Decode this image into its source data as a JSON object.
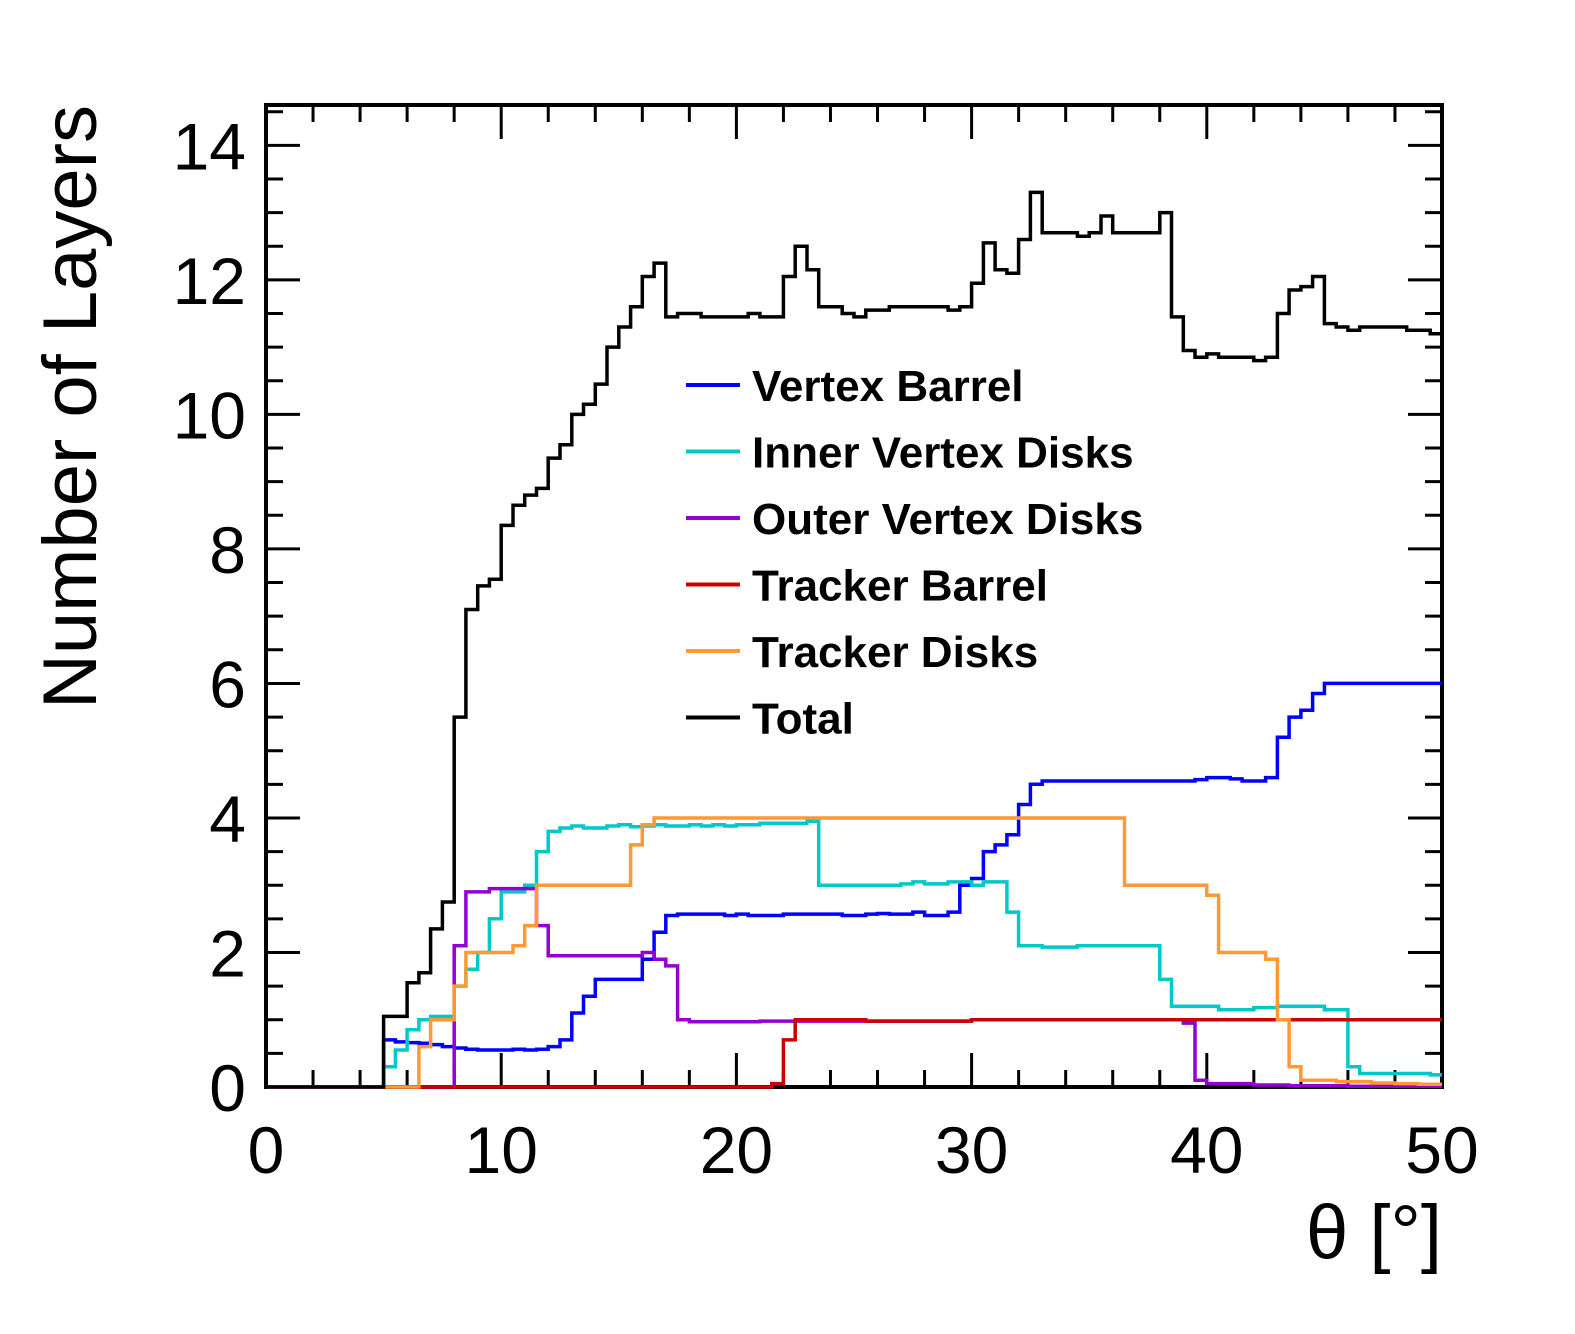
{
  "chart_data": {
    "type": "line",
    "title": "",
    "xlabel": "θ [°]",
    "ylabel": "Number of Layers",
    "xlim": [
      0,
      50
    ],
    "ylim": [
      0,
      14.6
    ],
    "x_ticks": [
      0,
      10,
      20,
      30,
      40,
      50
    ],
    "y_ticks": [
      0,
      2,
      4,
      6,
      8,
      10,
      12,
      14
    ],
    "grid": false,
    "legend_position": "center",
    "bin_width": 0.5,
    "x": [
      0,
      0.5,
      1,
      1.5,
      2,
      2.5,
      3,
      3.5,
      4,
      4.5,
      5,
      5.5,
      6,
      6.5,
      7,
      7.5,
      8,
      8.5,
      9,
      9.5,
      10,
      10.5,
      11,
      11.5,
      12,
      12.5,
      13,
      13.5,
      14,
      14.5,
      15,
      15.5,
      16,
      16.5,
      17,
      17.5,
      18,
      18.5,
      19,
      19.5,
      20,
      20.5,
      21,
      21.5,
      22,
      22.5,
      23,
      23.5,
      24,
      24.5,
      25,
      25.5,
      26,
      26.5,
      27,
      27.5,
      28,
      28.5,
      29,
      29.5,
      30,
      30.5,
      31,
      31.5,
      32,
      32.5,
      33,
      33.5,
      34,
      34.5,
      35,
      35.5,
      36,
      36.5,
      37,
      37.5,
      38,
      38.5,
      39,
      39.5,
      40,
      40.5,
      41,
      41.5,
      42,
      42.5,
      43,
      43.5,
      44,
      44.5,
      45,
      45.5,
      46,
      46.5,
      47,
      47.5,
      48,
      48.5,
      49,
      49.5
    ],
    "series": [
      {
        "name": "Vertex Barrel",
        "color": "#0000ff",
        "values": [
          0,
          0,
          0,
          0,
          0,
          0,
          0,
          0,
          0,
          0,
          0.7,
          0.67,
          0.66,
          0.65,
          0.63,
          0.6,
          0.58,
          0.56,
          0.55,
          0.55,
          0.55,
          0.56,
          0.55,
          0.56,
          0.6,
          0.7,
          1.1,
          1.35,
          1.6,
          1.6,
          1.6,
          1.6,
          1.9,
          2.3,
          2.55,
          2.57,
          2.57,
          2.57,
          2.57,
          2.55,
          2.57,
          2.55,
          2.55,
          2.55,
          2.57,
          2.57,
          2.57,
          2.57,
          2.57,
          2.55,
          2.55,
          2.57,
          2.58,
          2.57,
          2.57,
          2.6,
          2.55,
          2.55,
          2.6,
          3.0,
          3.1,
          3.5,
          3.6,
          3.75,
          4.2,
          4.5,
          4.55,
          4.55,
          4.55,
          4.55,
          4.55,
          4.55,
          4.55,
          4.55,
          4.55,
          4.55,
          4.55,
          4.55,
          4.55,
          4.57,
          4.6,
          4.6,
          4.58,
          4.55,
          4.55,
          4.6,
          5.2,
          5.5,
          5.6,
          5.85,
          6,
          6,
          6,
          6,
          6,
          6,
          6,
          6,
          6,
          6
        ]
      },
      {
        "name": "Inner Vertex Disks",
        "color": "#00c8c8",
        "values": [
          0,
          0,
          0,
          0,
          0,
          0,
          0,
          0,
          0,
          0,
          0.3,
          0.55,
          0.85,
          1.0,
          1.05,
          1.05,
          1.5,
          1.75,
          2.0,
          2.5,
          2.9,
          2.9,
          3.0,
          3.5,
          3.8,
          3.85,
          3.88,
          3.85,
          3.85,
          3.88,
          3.9,
          3.87,
          3.88,
          3.9,
          3.88,
          3.88,
          3.9,
          3.88,
          3.9,
          3.88,
          3.9,
          3.9,
          3.92,
          3.92,
          3.92,
          3.92,
          3.95,
          3.0,
          3.0,
          3.0,
          3.0,
          3.0,
          3.0,
          3.0,
          3.02,
          3.05,
          3.02,
          3.02,
          3.05,
          3.05,
          3.0,
          3.05,
          3.05,
          2.6,
          2.1,
          2.1,
          2.08,
          2.08,
          2.08,
          2.1,
          2.1,
          2.1,
          2.1,
          2.1,
          2.1,
          2.1,
          1.6,
          1.2,
          1.2,
          1.2,
          1.2,
          1.15,
          1.15,
          1.15,
          1.18,
          1.18,
          1.2,
          1.2,
          1.2,
          1.2,
          1.15,
          1.15,
          0.3,
          0.2,
          0.2,
          0.2,
          0.2,
          0.2,
          0.2,
          0.18
        ]
      },
      {
        "name": "Outer Vertex Disks",
        "color": "#9400d3",
        "values": [
          0,
          0,
          0,
          0,
          0,
          0,
          0,
          0,
          0,
          0,
          0,
          0,
          0,
          0,
          0,
          0,
          2.1,
          2.9,
          2.9,
          2.95,
          2.95,
          2.95,
          2.95,
          2.4,
          1.95,
          1.95,
          1.95,
          1.95,
          1.95,
          1.95,
          1.95,
          1.95,
          2.0,
          1.9,
          1.8,
          1.0,
          0.97,
          0.97,
          0.97,
          0.97,
          0.97,
          0.97,
          0.98,
          0.98,
          0.98,
          0.98,
          0.98,
          0.98,
          0.98,
          0.98,
          0.98,
          0.98,
          0.98,
          0.98,
          0.98,
          0.98,
          0.98,
          0.98,
          0.98,
          0.98,
          1.0,
          1.0,
          1.0,
          1.0,
          1.0,
          1.0,
          1.0,
          1.0,
          1.0,
          1.0,
          1.0,
          1.0,
          1.0,
          1.0,
          1.0,
          1.0,
          1.0,
          1.0,
          0.95,
          0.1,
          0.05,
          0.05,
          0.05,
          0.05,
          0.03,
          0.03,
          0.03,
          0.02,
          0.02,
          0.02,
          0.02,
          0.02,
          0.01,
          0.01,
          0.01,
          0.01,
          0.01,
          0.01,
          0.01,
          0.01
        ]
      },
      {
        "name": "Tracker Barrel",
        "color": "#cc0000",
        "values": [
          0,
          0,
          0,
          0,
          0,
          0,
          0,
          0,
          0,
          0,
          0,
          0,
          0,
          0,
          0,
          0,
          0,
          0,
          0,
          0,
          0,
          0,
          0,
          0,
          0,
          0,
          0,
          0,
          0,
          0,
          0,
          0,
          0,
          0,
          0,
          0,
          0,
          0,
          0,
          0,
          0,
          0,
          0,
          0.05,
          0.7,
          1.0,
          1.0,
          1.0,
          1.0,
          1.0,
          1.0,
          0.98,
          0.98,
          0.98,
          0.98,
          0.98,
          0.98,
          0.98,
          0.98,
          0.98,
          1.0,
          1.0,
          1.0,
          1.0,
          1.0,
          1.0,
          1.0,
          1.0,
          1.0,
          1.0,
          1.0,
          1.0,
          1.0,
          1.0,
          1.0,
          1.0,
          1.0,
          1.0,
          1.0,
          1.0,
          1.0,
          1.0,
          1.0,
          1.0,
          1.0,
          1.0,
          1.0,
          1.0,
          1.0,
          1.0,
          1.0,
          1.0,
          1.0,
          1.0,
          1.0,
          1.0,
          1.0,
          1.0,
          1.0,
          1.0
        ]
      },
      {
        "name": "Tracker Disks",
        "color": "#ff9933",
        "values": [
          0,
          0,
          0,
          0,
          0,
          0,
          0,
          0,
          0,
          0,
          0,
          0,
          0,
          0.6,
          1.0,
          1.0,
          1.5,
          2.0,
          2.0,
          2.0,
          2.0,
          2.1,
          2.4,
          3.0,
          3.0,
          3.0,
          3.0,
          3.0,
          3.0,
          3.0,
          3.0,
          3.6,
          3.9,
          4.0,
          4.0,
          4.0,
          4.0,
          4.0,
          4.0,
          4.0,
          4.0,
          4.0,
          4.0,
          4.0,
          4.0,
          4.0,
          4.0,
          4.0,
          4.0,
          4.0,
          4.0,
          4.0,
          4.0,
          4.0,
          4.0,
          4.0,
          4.0,
          4.0,
          4.0,
          4.0,
          4.0,
          4.0,
          4.0,
          4.0,
          4.0,
          4.0,
          4.0,
          4.0,
          4.0,
          4.0,
          4.0,
          4.0,
          4.0,
          3.0,
          3.0,
          3.0,
          3.0,
          3.0,
          3.0,
          3.0,
          2.85,
          2.0,
          2.0,
          2.0,
          2.0,
          1.9,
          1.0,
          0.3,
          0.1,
          0.1,
          0.1,
          0.08,
          0.08,
          0.08,
          0.06,
          0.06,
          0.05,
          0.05,
          0.04,
          0.04
        ]
      },
      {
        "name": "Total",
        "color": "#000000",
        "values": [
          0,
          0,
          0,
          0,
          0,
          0,
          0,
          0,
          0,
          0,
          1.05,
          1.05,
          1.55,
          1.7,
          2.35,
          2.75,
          5.5,
          7.1,
          7.45,
          7.55,
          8.35,
          8.65,
          8.8,
          8.9,
          9.35,
          9.55,
          10.0,
          10.15,
          10.45,
          11.0,
          11.3,
          11.6,
          12.05,
          12.25,
          11.45,
          11.5,
          11.5,
          11.45,
          11.45,
          11.45,
          11.45,
          11.5,
          11.45,
          11.45,
          12.05,
          12.5,
          12.15,
          11.6,
          11.6,
          11.5,
          11.45,
          11.55,
          11.55,
          11.6,
          11.6,
          11.6,
          11.6,
          11.6,
          11.55,
          11.6,
          11.95,
          12.55,
          12.15,
          12.1,
          12.6,
          13.3,
          12.7,
          12.7,
          12.7,
          12.65,
          12.7,
          12.95,
          12.7,
          12.7,
          12.7,
          12.7,
          13.0,
          11.45,
          10.95,
          10.85,
          10.9,
          10.85,
          10.85,
          10.85,
          10.8,
          10.85,
          11.5,
          11.85,
          11.9,
          12.05,
          11.35,
          11.3,
          11.25,
          11.3,
          11.3,
          11.3,
          11.3,
          11.25,
          11.25,
          11.2
        ]
      }
    ]
  }
}
